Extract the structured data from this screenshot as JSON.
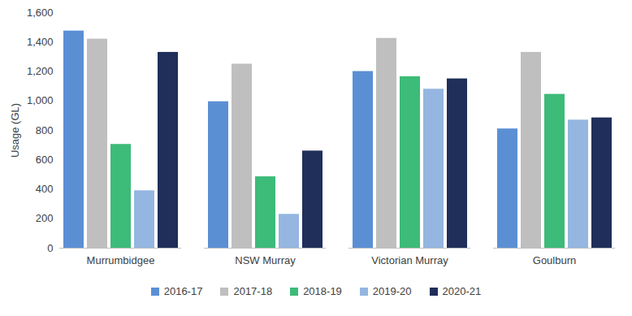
{
  "chart_data": {
    "type": "bar",
    "y_label": "Usage (GL)",
    "categories": [
      "Murrumbidgee",
      "NSW Murray",
      "Victorian Murray",
      "Goulburn"
    ],
    "series": [
      {
        "name": "2016-17",
        "color": "#5b8fd4",
        "values": [
          1475,
          995,
          1200,
          810
        ]
      },
      {
        "name": "2017-18",
        "color": "#bfbfbf",
        "values": [
          1420,
          1250,
          1425,
          1330
        ]
      },
      {
        "name": "2018-19",
        "color": "#3dbb78",
        "values": [
          705,
          485,
          1165,
          1045
        ]
      },
      {
        "name": "2019-20",
        "color": "#94b6e0",
        "values": [
          390,
          230,
          1080,
          870
        ]
      },
      {
        "name": "2020-21",
        "color": "#1f2f5a",
        "values": [
          1330,
          660,
          1150,
          885
        ]
      }
    ],
    "ylim": [
      0,
      1600
    ],
    "yticks": [
      0,
      200,
      400,
      600,
      800,
      {
        "value": 1000,
        "label": "1,000"
      },
      {
        "value": 1200,
        "label": "1,200"
      },
      {
        "value": 1400,
        "label": "1,400"
      },
      {
        "value": 1600,
        "label": "1,600"
      }
    ],
    "grid": false,
    "legend": "bottom"
  }
}
